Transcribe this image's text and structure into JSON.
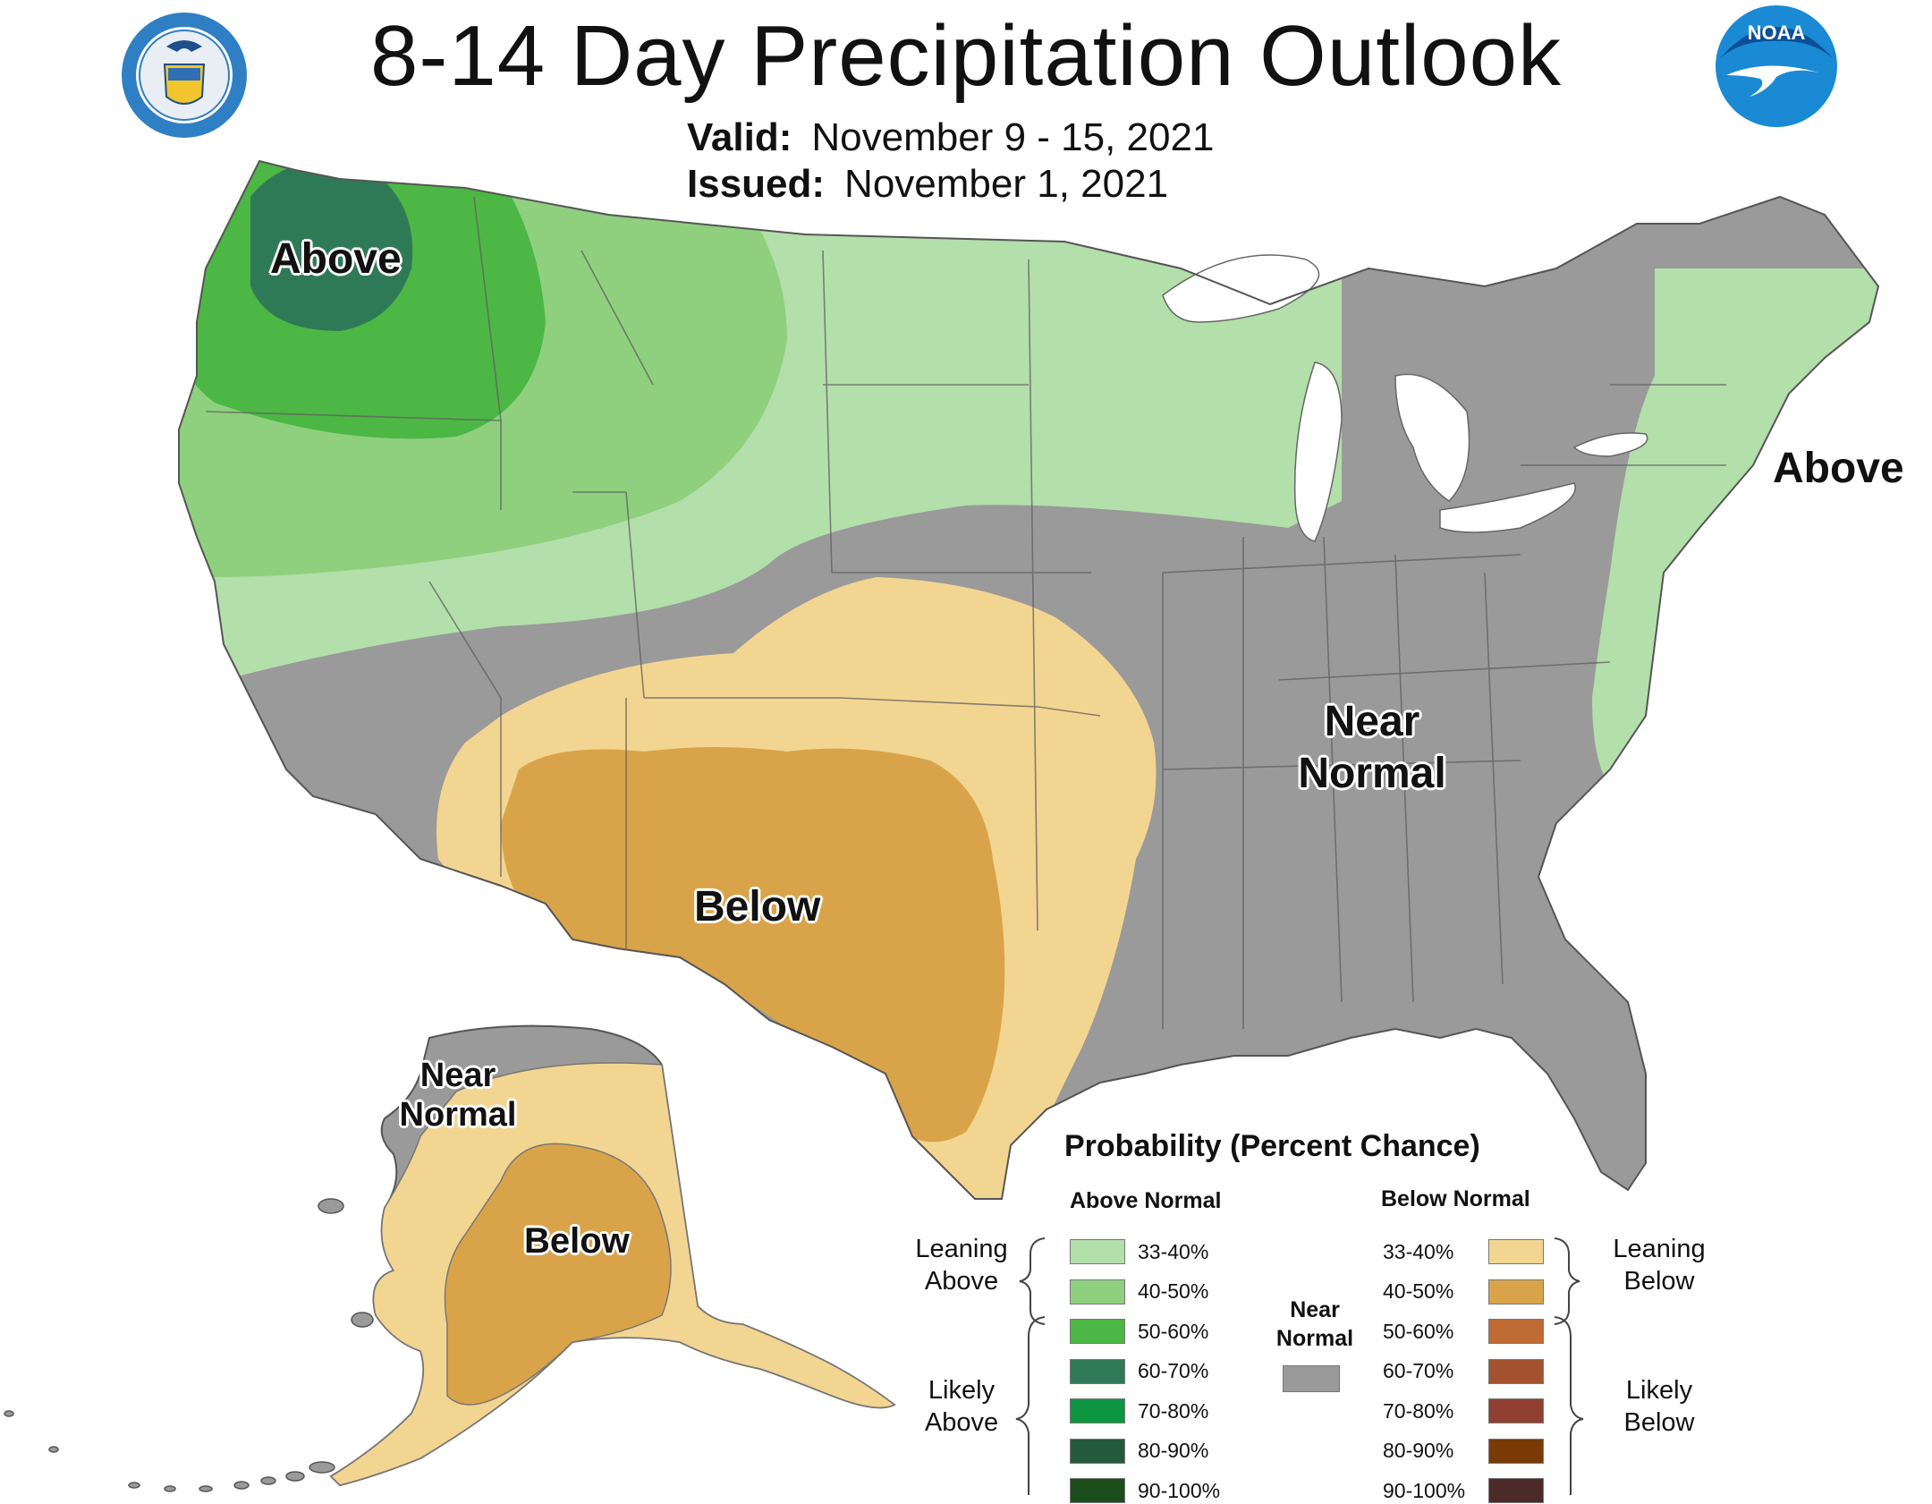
{
  "title": "8-14 Day Precipitation Outlook",
  "valid_label": "Valid:",
  "valid_value": "November 9 - 15, 2021",
  "issued_label": "Issued:",
  "issued_value": "November 1, 2021",
  "logos": {
    "left": "department-of-commerce-seal",
    "right": "noaa-logo",
    "noaa_text": "NOAA"
  },
  "map_labels": {
    "nw_above": "Above",
    "ne_above": "Above",
    "near_normal_1": "Near",
    "near_normal_2": "Normal",
    "below": "Below",
    "ak_near_1": "Near",
    "ak_near_2": "Normal",
    "ak_below": "Below"
  },
  "legend": {
    "title": "Probability (Percent Chance)",
    "above_head": "Above Normal",
    "below_head": "Below Normal",
    "near_head_1": "Near",
    "near_head_2": "Normal",
    "leaning_above_1": "Leaning",
    "leaning_above_2": "Above",
    "likely_above_1": "Likely",
    "likely_above_2": "Above",
    "leaning_below_1": "Leaning",
    "leaning_below_2": "Below",
    "likely_below_1": "Likely",
    "likely_below_2": "Below",
    "above": [
      {
        "range": "33-40%",
        "color": "#b3dfaa"
      },
      {
        "range": "40-50%",
        "color": "#8fd07e"
      },
      {
        "range": "50-60%",
        "color": "#4cb744"
      },
      {
        "range": "60-70%",
        "color": "#2f7a56"
      },
      {
        "range": "70-80%",
        "color": "#0c9640"
      },
      {
        "range": "80-90%",
        "color": "#245a3c"
      },
      {
        "range": "90-100%",
        "color": "#1b4d1a"
      }
    ],
    "below": [
      {
        "range": "33-40%",
        "color": "#f3d592"
      },
      {
        "range": "40-50%",
        "color": "#d9a449"
      },
      {
        "range": "50-60%",
        "color": "#c06b33"
      },
      {
        "range": "60-70%",
        "color": "#a2522e"
      },
      {
        "range": "70-80%",
        "color": "#8f4030"
      },
      {
        "range": "80-90%",
        "color": "#7a3a05"
      },
      {
        "range": "90-100%",
        "color": "#4c2a28"
      }
    ],
    "near_color": "#9a9a9a"
  },
  "colors": {
    "near": "#9a9a9a",
    "lean_above": "#b3dfaa",
    "above_40": "#8fd07e",
    "above_50": "#4cb744",
    "above_60": "#2f7a56",
    "lean_below": "#f3d592",
    "below_40": "#d9a449",
    "lakes": "#ffffff"
  }
}
